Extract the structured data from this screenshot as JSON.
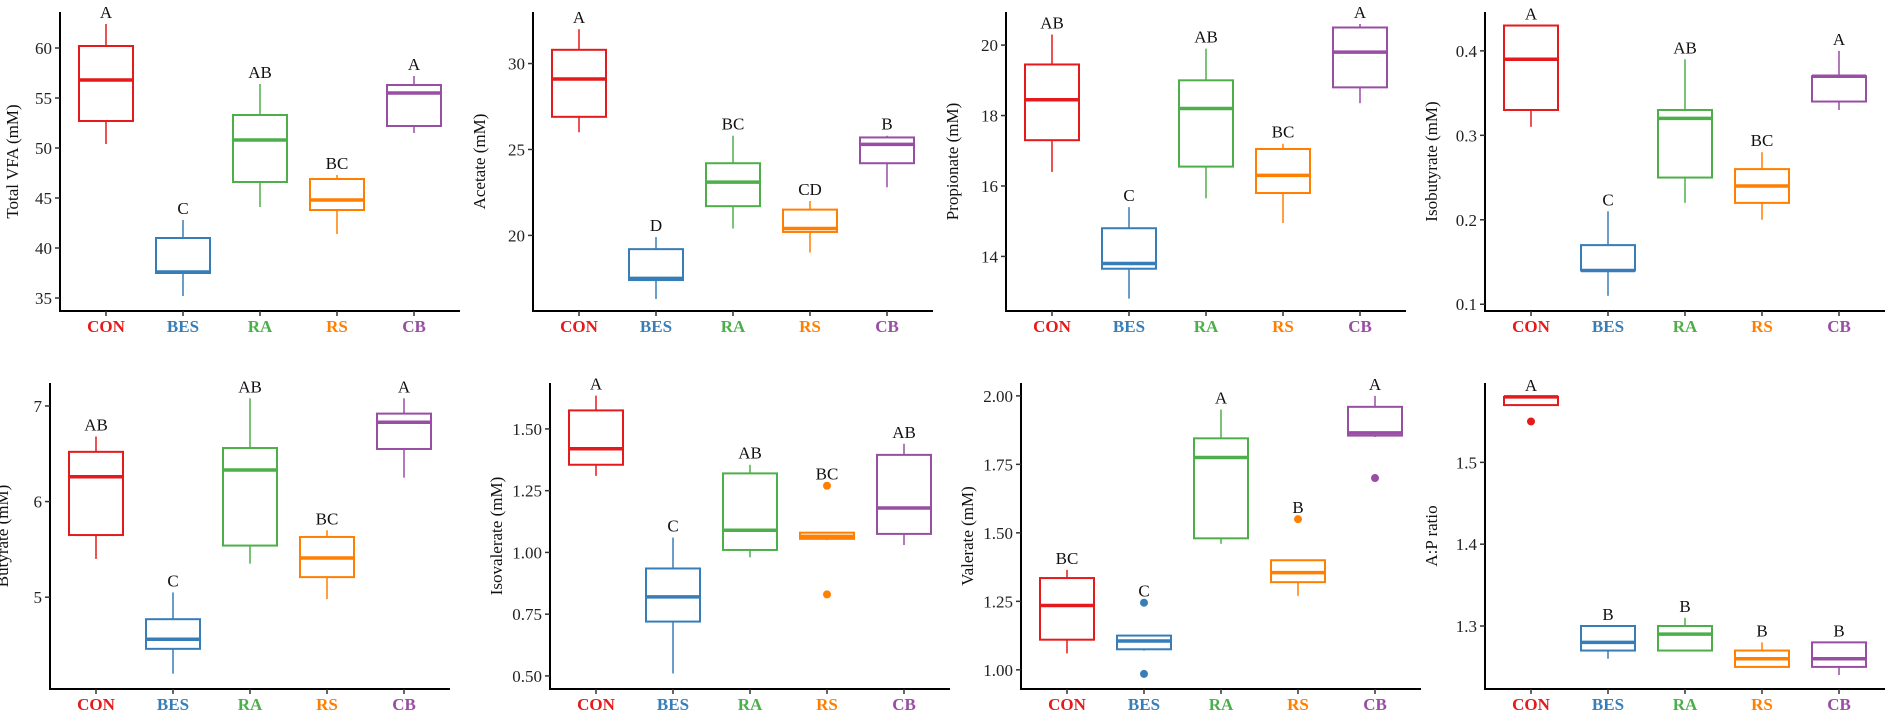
{
  "colors": {
    "CON": "#e41a1c",
    "BES": "#377eb8",
    "RA": "#4daf4a",
    "RS": "#ff7f00",
    "CB": "#984ea3"
  },
  "chart_data": [
    {
      "type": "box",
      "ylabel": "Total VFA (mM)",
      "categories": [
        "CON",
        "BES",
        "RA",
        "RS",
        "CB"
      ],
      "ylim": [
        33.7,
        63.6
      ],
      "yticks": [
        "35",
        "40",
        "45",
        "50",
        "55",
        "60"
      ],
      "boxes": [
        {
          "min": 50.4,
          "q1": 52.7,
          "median": 56.8,
          "q3": 60.2,
          "max": 62.4,
          "outliers": [],
          "letter": "A"
        },
        {
          "min": 35.2,
          "q1": 37.5,
          "median": 37.6,
          "q3": 41.0,
          "max": 42.8,
          "outliers": [],
          "letter": "C"
        },
        {
          "min": 44.1,
          "q1": 46.6,
          "median": 50.8,
          "q3": 53.3,
          "max": 56.4,
          "outliers": [],
          "letter": "AB"
        },
        {
          "min": 41.4,
          "q1": 43.8,
          "median": 44.8,
          "q3": 46.9,
          "max": 47.3,
          "outliers": [],
          "letter": "BC"
        },
        {
          "min": 51.5,
          "q1": 52.2,
          "median": 55.5,
          "q3": 56.3,
          "max": 57.2,
          "outliers": [],
          "letter": "A"
        }
      ]
    },
    {
      "type": "box",
      "ylabel": "Acetate (mM)",
      "categories": [
        "CON",
        "BES",
        "RA",
        "RS",
        "CB"
      ],
      "ylim": [
        15.6,
        33.0
      ],
      "yticks": [
        "20",
        "25",
        "30"
      ],
      "boxes": [
        {
          "min": 26.0,
          "q1": 26.9,
          "median": 29.1,
          "q3": 30.8,
          "max": 32.0,
          "outliers": [],
          "letter": "A"
        },
        {
          "min": 16.3,
          "q1": 17.4,
          "median": 17.5,
          "q3": 19.2,
          "max": 19.9,
          "outliers": [],
          "letter": "D"
        },
        {
          "min": 20.4,
          "q1": 21.7,
          "median": 23.1,
          "q3": 24.2,
          "max": 25.8,
          "outliers": [],
          "letter": "BC"
        },
        {
          "min": 19.0,
          "q1": 20.2,
          "median": 20.4,
          "q3": 21.5,
          "max": 22.0,
          "outliers": [],
          "letter": "CD"
        },
        {
          "min": 22.8,
          "q1": 24.2,
          "median": 25.3,
          "q3": 25.7,
          "max": 25.8,
          "outliers": [],
          "letter": "B"
        }
      ]
    },
    {
      "type": "box",
      "ylabel": "Propionate (mM)",
      "categories": [
        "CON",
        "BES",
        "RA",
        "RS",
        "CB"
      ],
      "ylim": [
        12.45,
        20.94
      ],
      "yticks": [
        "14",
        "16",
        "18",
        "20"
      ],
      "boxes": [
        {
          "min": 16.4,
          "q1": 17.3,
          "median": 18.45,
          "q3": 19.45,
          "max": 20.3,
          "outliers": [],
          "letter": "AB"
        },
        {
          "min": 12.8,
          "q1": 13.65,
          "median": 13.8,
          "q3": 14.8,
          "max": 15.4,
          "outliers": [],
          "letter": "C"
        },
        {
          "min": 15.65,
          "q1": 16.55,
          "median": 18.2,
          "q3": 19.0,
          "max": 19.9,
          "outliers": [],
          "letter": "AB"
        },
        {
          "min": 14.95,
          "q1": 15.8,
          "median": 16.3,
          "q3": 17.05,
          "max": 17.2,
          "outliers": [],
          "letter": "BC"
        },
        {
          "min": 18.35,
          "q1": 18.8,
          "median": 19.8,
          "q3": 20.5,
          "max": 20.6,
          "outliers": [],
          "letter": "A"
        }
      ]
    },
    {
      "type": "box",
      "ylabel": "Isobutyrate (mM)",
      "categories": [
        "CON",
        "BES",
        "RA",
        "RS",
        "CB"
      ],
      "ylim": [
        0.092,
        0.446
      ],
      "yticks": [
        "0.1",
        "0.2",
        "0.3",
        "0.4"
      ],
      "boxes": [
        {
          "min": 0.31,
          "q1": 0.33,
          "median": 0.39,
          "q3": 0.43,
          "max": 0.43,
          "outliers": [],
          "letter": "A"
        },
        {
          "min": 0.11,
          "q1": 0.14,
          "median": 0.14,
          "q3": 0.17,
          "max": 0.21,
          "outliers": [],
          "letter": "C"
        },
        {
          "min": 0.22,
          "q1": 0.25,
          "median": 0.32,
          "q3": 0.33,
          "max": 0.39,
          "outliers": [],
          "letter": "AB"
        },
        {
          "min": 0.2,
          "q1": 0.22,
          "median": 0.24,
          "q3": 0.26,
          "max": 0.28,
          "outliers": [],
          "letter": "BC"
        },
        {
          "min": 0.33,
          "q1": 0.34,
          "median": 0.37,
          "q3": 0.37,
          "max": 0.4,
          "outliers": [],
          "letter": "A"
        }
      ]
    },
    {
      "type": "box",
      "ylabel": "Butyrate (mM)",
      "categories": [
        "CON",
        "BES",
        "RA",
        "RS",
        "CB"
      ],
      "ylim": [
        4.04,
        7.24
      ],
      "yticks": [
        "5",
        "6",
        "7"
      ],
      "boxes": [
        {
          "min": 5.4,
          "q1": 5.65,
          "median": 6.26,
          "q3": 6.52,
          "max": 6.68,
          "outliers": [],
          "letter": "AB"
        },
        {
          "min": 4.2,
          "q1": 4.46,
          "median": 4.56,
          "q3": 4.77,
          "max": 5.05,
          "outliers": [],
          "letter": "C"
        },
        {
          "min": 5.35,
          "q1": 5.54,
          "median": 6.33,
          "q3": 6.56,
          "max": 7.08,
          "outliers": [],
          "letter": "AB"
        },
        {
          "min": 4.98,
          "q1": 5.21,
          "median": 5.41,
          "q3": 5.63,
          "max": 5.7,
          "outliers": [],
          "letter": "BC"
        },
        {
          "min": 6.25,
          "q1": 6.55,
          "median": 6.83,
          "q3": 6.92,
          "max": 7.08,
          "outliers": [],
          "letter": "A"
        }
      ]
    },
    {
      "type": "box",
      "ylabel": "Isovalerate (mM)",
      "categories": [
        "CON",
        "BES",
        "RA",
        "RS",
        "CB"
      ],
      "ylim": [
        0.447,
        1.686
      ],
      "yticks": [
        "0.50",
        "0.75",
        "1.00",
        "1.25",
        "1.50"
      ],
      "boxes": [
        {
          "min": 1.31,
          "q1": 1.355,
          "median": 1.42,
          "q3": 1.575,
          "max": 1.635,
          "outliers": [],
          "letter": "A"
        },
        {
          "min": 0.51,
          "q1": 0.72,
          "median": 0.82,
          "q3": 0.935,
          "max": 1.06,
          "outliers": [],
          "letter": "C"
        },
        {
          "min": 0.98,
          "q1": 1.01,
          "median": 1.09,
          "q3": 1.32,
          "max": 1.355,
          "outliers": [],
          "letter": "AB"
        },
        {
          "min": 1.05,
          "q1": 1.055,
          "median": 1.065,
          "q3": 1.08,
          "max": 1.08,
          "outliers": [
            1.27,
            0.83
          ],
          "letter": "BC"
        },
        {
          "min": 1.03,
          "q1": 1.075,
          "median": 1.18,
          "q3": 1.395,
          "max": 1.44,
          "outliers": [],
          "letter": "AB"
        }
      ]
    },
    {
      "type": "box",
      "ylabel": "Valerate (mM)",
      "categories": [
        "CON",
        "BES",
        "RA",
        "RS",
        "CB"
      ],
      "ylim": [
        0.93,
        2.047
      ],
      "yticks": [
        "1.00",
        "1.25",
        "1.50",
        "1.75",
        "2.00"
      ],
      "boxes": [
        {
          "min": 1.06,
          "q1": 1.11,
          "median": 1.235,
          "q3": 1.335,
          "max": 1.365,
          "outliers": [],
          "letter": "BC"
        },
        {
          "min": 1.07,
          "q1": 1.075,
          "median": 1.105,
          "q3": 1.125,
          "max": 1.125,
          "outliers": [
            1.245,
            0.985
          ],
          "letter": "C"
        },
        {
          "min": 1.46,
          "q1": 1.48,
          "median": 1.775,
          "q3": 1.845,
          "max": 1.95,
          "outliers": [],
          "letter": "A"
        },
        {
          "min": 1.27,
          "q1": 1.32,
          "median": 1.355,
          "q3": 1.4,
          "max": 1.4,
          "outliers": [
            1.55
          ],
          "letter": "B"
        },
        {
          "min": 1.85,
          "q1": 1.855,
          "median": 1.865,
          "q3": 1.96,
          "max": 2.0,
          "outliers": [
            1.7
          ],
          "letter": "A"
        }
      ]
    },
    {
      "type": "box",
      "ylabel": "A:P ratio",
      "categories": [
        "CON",
        "BES",
        "RA",
        "RS",
        "CB"
      ],
      "ylim": [
        1.223,
        1.597
      ],
      "yticks": [
        "1.3",
        "1.4",
        "1.5"
      ],
      "boxes": [
        {
          "min": 1.57,
          "q1": 1.57,
          "median": 1.58,
          "q3": 1.58,
          "max": 1.58,
          "outliers": [
            1.55
          ],
          "letter": "A"
        },
        {
          "min": 1.26,
          "q1": 1.27,
          "median": 1.28,
          "q3": 1.3,
          "max": 1.3,
          "outliers": [],
          "letter": "B"
        },
        {
          "min": 1.27,
          "q1": 1.27,
          "median": 1.29,
          "q3": 1.3,
          "max": 1.31,
          "outliers": [],
          "letter": "B"
        },
        {
          "min": 1.25,
          "q1": 1.25,
          "median": 1.26,
          "q3": 1.27,
          "max": 1.28,
          "outliers": [],
          "letter": "B"
        },
        {
          "min": 1.24,
          "q1": 1.25,
          "median": 1.26,
          "q3": 1.28,
          "max": 1.28,
          "outliers": [],
          "letter": "B"
        }
      ]
    }
  ]
}
